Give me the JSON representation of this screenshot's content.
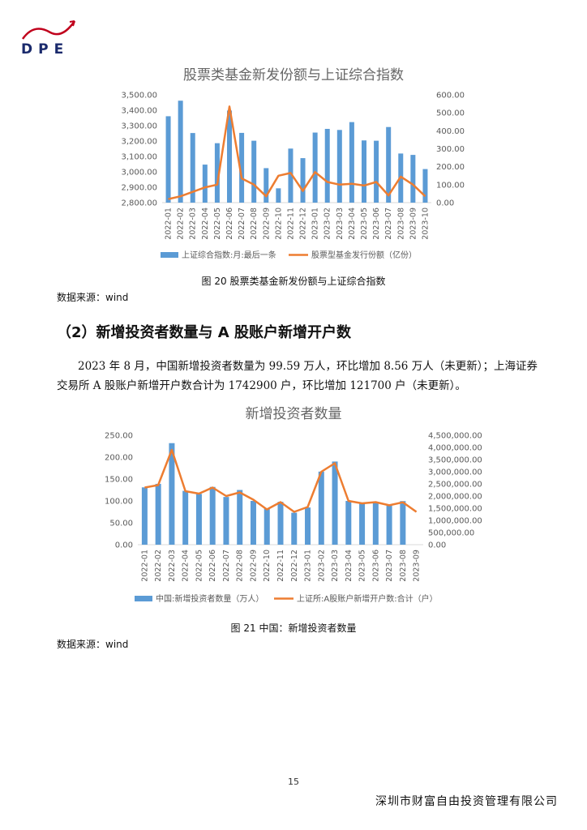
{
  "header": {
    "logo_text": "DPE"
  },
  "chart1": {
    "title": "股票类基金新发份额与上证综合指数",
    "caption": "图 20  股票类基金新发份额与上证综合指数",
    "source": "数据来源：wind",
    "chart_data": {
      "type": "bar+line",
      "title": "股票类基金新发份额与上证综合指数",
      "categories": [
        "2022-01",
        "2022-02",
        "2022-03",
        "2022-04",
        "2022-05",
        "2022-06",
        "2022-07",
        "2022-08",
        "2022-09",
        "2022-10",
        "2022-11",
        "2022-12",
        "2023-01",
        "2023-02",
        "2023-03",
        "2023-04",
        "2023-05",
        "2023-06",
        "2023-07",
        "2023-08",
        "2023-09",
        "2023-10"
      ],
      "left_axis": {
        "min": 2800,
        "max": 3500,
        "ticks": [
          "2,800.00",
          "2,900.00",
          "3,000.00",
          "3,100.00",
          "3,200.00",
          "3,300.00",
          "3,400.00",
          "3,500.00"
        ]
      },
      "right_axis": {
        "min": 0,
        "max": 600,
        "ticks": [
          "0.00",
          "100.00",
          "200.00",
          "300.00",
          "400.00",
          "500.00",
          "600.00"
        ]
      },
      "series": [
        {
          "name": "上证综合指数:月:最后一条",
          "type": "bar",
          "axis": "left",
          "color": "#5b9bd5",
          "values": [
            3361,
            3462,
            3252,
            3047,
            3186,
            3398,
            3253,
            3202,
            3024,
            2893,
            3151,
            3089,
            3255,
            3279,
            3272,
            3323,
            3204,
            3202,
            3291,
            3119,
            3110,
            3018
          ]
        },
        {
          "name": "股票型基金发行份额（亿份）",
          "type": "line",
          "axis": "right",
          "color": "#ed7d31",
          "values": [
            20,
            35,
            60,
            85,
            100,
            535,
            135,
            100,
            35,
            150,
            165,
            65,
            170,
            115,
            100,
            105,
            95,
            115,
            40,
            145,
            100,
            35
          ]
        }
      ],
      "legend": "bottom"
    }
  },
  "section": {
    "heading": "（2）新增投资者数量与 A 股账户新增开户数",
    "paragraph": "2023 年 8 月，中国新增投资者数量为 99.59 万人，环比增加 8.56 万人（未更新）；上海证券交易所 A 股账户新增开户数合计为 1742900 户，环比增加 121700 户（未更新）。"
  },
  "chart2": {
    "title": "新增投资者数量",
    "caption": "图 21  中国：新增投资者数量",
    "source": "数据来源：wind",
    "chart_data": {
      "type": "bar+line",
      "title": "新增投资者数量",
      "categories": [
        "2022-01",
        "2022-02",
        "2022-03",
        "2022-04",
        "2022-05",
        "2022-06",
        "2022-07",
        "2022-08",
        "2022-09",
        "2022-10",
        "2022-11",
        "2022-12",
        "2023-01",
        "2023-02",
        "2023-03",
        "2023-04",
        "2023-05",
        "2023-06",
        "2023-07",
        "2023-08",
        "2023-09"
      ],
      "left_axis": {
        "min": 0,
        "max": 250,
        "ticks": [
          "0.00",
          "50.00",
          "100.00",
          "150.00",
          "200.00",
          "250.00"
        ]
      },
      "right_axis": {
        "min": 0,
        "max": 4500000,
        "ticks": [
          "0.00",
          "500,000.00",
          "1,000,000.00",
          "1,500,000.00",
          "2,000,000.00",
          "2,500,000.00",
          "3,000,000.00",
          "3,500,000.00",
          "4,000,000.00",
          "4,500,000.00"
        ]
      },
      "series": [
        {
          "name": "中国:新增投资者数量（万人）",
          "type": "bar",
          "axis": "left",
          "color": "#5b9bd5",
          "values": [
            131,
            139,
            232,
            123,
            116,
            132,
            109,
            125,
            100,
            83,
            98,
            73,
            85,
            167,
            190,
            100,
            95,
            97,
            91,
            99.59,
            null
          ]
        },
        {
          "name": "上证所:A股账户新增开户数:合计（户）",
          "type": "line",
          "axis": "right",
          "color": "#ed7d31",
          "values": [
            2350000,
            2450000,
            3900000,
            2200000,
            2100000,
            2350000,
            2000000,
            2150000,
            1850000,
            1450000,
            1750000,
            1350000,
            1550000,
            3000000,
            3350000,
            1800000,
            1700000,
            1750000,
            1620000,
            1742900,
            1350000
          ]
        }
      ],
      "legend": "bottom"
    }
  },
  "footer": {
    "page_number": "15",
    "company": "深圳市财富自由投资管理有限公司"
  }
}
